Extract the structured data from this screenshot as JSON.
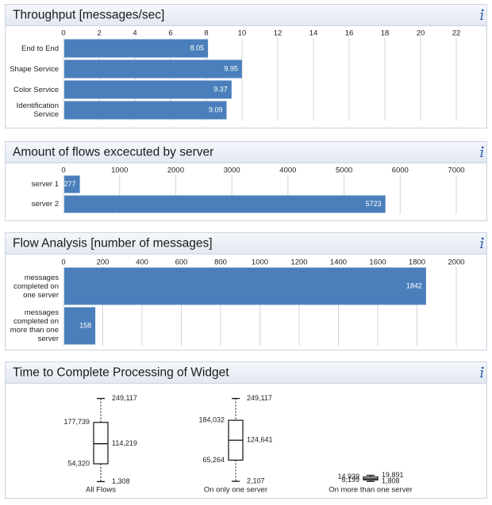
{
  "chart_data": [
    {
      "type": "bar",
      "title": "Throughput [messages/sec]",
      "categories": [
        "End to End",
        "Shape Service",
        "Color Service",
        "Identification Service"
      ],
      "values": [
        8.05,
        9.95,
        9.37,
        9.09
      ],
      "color": "#4a7fbb",
      "xlim": [
        0,
        22
      ],
      "xticks": [
        0,
        2,
        4,
        6,
        8,
        10,
        12,
        14,
        16,
        18,
        20,
        22
      ],
      "grid": true
    },
    {
      "type": "bar",
      "title": "Amount of flows excecuted by server",
      "categories": [
        "server 1",
        "server 2"
      ],
      "values": [
        277,
        5723
      ],
      "color": "#4a7fbb",
      "xlim": [
        0,
        7000
      ],
      "xticks": [
        0,
        1000,
        2000,
        3000,
        4000,
        5000,
        6000,
        7000
      ],
      "grid": true
    },
    {
      "type": "bar",
      "title": "Flow Analysis [number of messages]",
      "categories": [
        "messages completed on one server",
        "messages completed on more than one server"
      ],
      "values": [
        1842,
        158
      ],
      "color": "#4a7fbb",
      "xlim": [
        0,
        2000
      ],
      "xticks": [
        0,
        200,
        400,
        600,
        800,
        1000,
        1200,
        1400,
        1600,
        1800,
        2000
      ],
      "grid": true
    },
    {
      "type": "box",
      "title": "Time to Complete Processing of Widget",
      "ylim": [
        0,
        260000
      ],
      "boxes": [
        {
          "name": "All Flows",
          "min": 1308,
          "q1": 54320,
          "median": 114219,
          "q3": 177739,
          "max": 249117,
          "labels": {
            "min": "1,308",
            "q1": "54,320",
            "median": "114,219",
            "q3": "177,739",
            "max": "249,117"
          }
        },
        {
          "name": "On only one server",
          "min": 2107,
          "q1": 65264,
          "median": 124641,
          "q3": 184032,
          "max": 249117,
          "labels": {
            "min": "2,107",
            "q1": "65,264",
            "median": "124,641",
            "q3": "184,032",
            "max": "249,117"
          }
        },
        {
          "name": "On more than one server",
          "min": 1808,
          "q1": 6199,
          "median": 9800,
          "q3": 14939,
          "max": 19891,
          "labels": {
            "min": "1,808",
            "q1": "6,199",
            "q3": "14,939",
            "max": "19,891"
          }
        }
      ]
    }
  ]
}
